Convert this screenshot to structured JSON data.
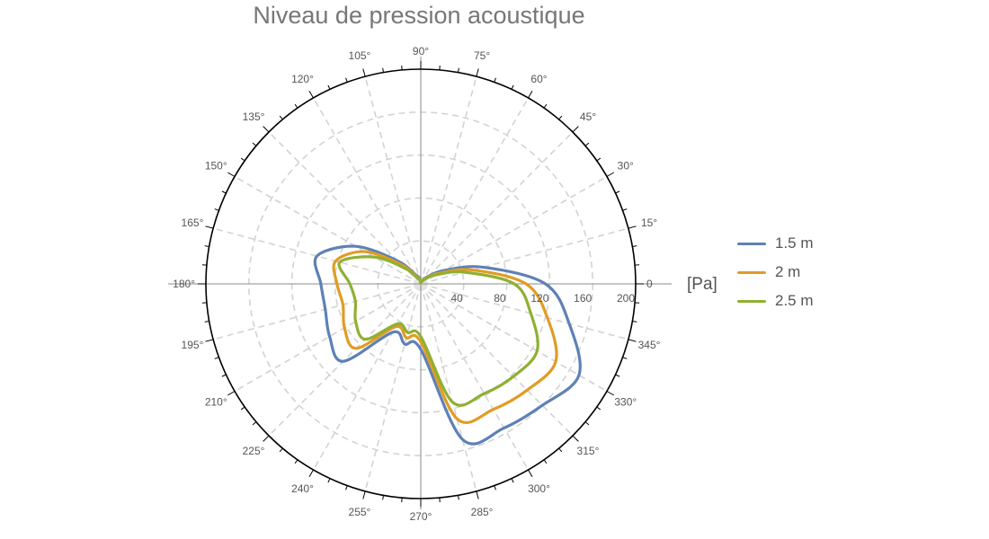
{
  "chart_data": {
    "type": "polar-line",
    "title": "Niveau de pression acoustique",
    "radial_label": "[Pa]",
    "radial_range": [
      0,
      200
    ],
    "radial_ticks": [
      "40",
      "80",
      "120",
      "160",
      "200"
    ],
    "radial_zero_label": "0",
    "angle_ticks": [
      "0",
      "15°",
      "30°",
      "45°",
      "60°",
      "75°",
      "90°",
      "105°",
      "120°",
      "135°",
      "150°",
      "165°",
      "180°",
      "195°",
      "210°",
      "225°",
      "240°",
      "255°",
      "270°",
      "285°",
      "300°",
      "315°",
      "330°",
      "345°"
    ],
    "grid": true,
    "legend_position": "right",
    "angles_deg": [
      0,
      15,
      30,
      45,
      60,
      75,
      90,
      105,
      120,
      135,
      150,
      165,
      180,
      195,
      210,
      225,
      240,
      255,
      270,
      285,
      300,
      315,
      330,
      345
    ],
    "series": [
      {
        "name": "1.5 m",
        "color": "#5E81B5",
        "values": [
          116,
          60,
          25,
          10,
          5,
          2,
          1,
          6,
          10,
          30,
          70,
          100,
          93,
          92,
          98,
          102,
          52,
          58,
          61,
          150,
          155,
          160,
          170,
          143
        ]
      },
      {
        "name": "2 m",
        "color": "#E19C24",
        "values": [
          98,
          50,
          20,
          8,
          4,
          2,
          1,
          5,
          8,
          25,
          60,
          82,
          78,
          75,
          82,
          85,
          46,
          52,
          54,
          130,
          135,
          140,
          145,
          122
        ]
      },
      {
        "name": "2.5 m",
        "color": "#8FB032",
        "values": [
          87,
          42,
          17,
          7,
          3,
          2,
          1,
          5,
          6,
          20,
          50,
          78,
          66,
          63,
          70,
          73,
          43,
          47,
          49,
          114,
          118,
          122,
          125,
          106
        ]
      }
    ]
  }
}
